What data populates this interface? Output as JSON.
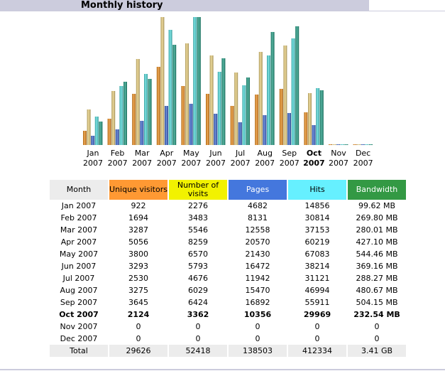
{
  "page": {
    "title": "Monthly history"
  },
  "colors": {
    "unique": "#ff9933",
    "visits": "#f2f200",
    "pages": "#4477dd",
    "hits": "#66f0ff",
    "bandwidth": "#339944"
  },
  "table": {
    "headers": [
      "Month",
      "Unique visitors",
      "Number of visits",
      "Pages",
      "Hits",
      "Bandwidth"
    ],
    "rows": [
      [
        "Jan 2007",
        "922",
        "2276",
        "4682",
        "14856",
        "99.62 MB"
      ],
      [
        "Feb 2007",
        "1694",
        "3483",
        "8131",
        "30814",
        "269.80 MB"
      ],
      [
        "Mar 2007",
        "3287",
        "5546",
        "12558",
        "37153",
        "280.01 MB"
      ],
      [
        "Apr 2007",
        "5056",
        "8259",
        "20570",
        "60219",
        "427.10 MB"
      ],
      [
        "May 2007",
        "3800",
        "6570",
        "21430",
        "67083",
        "544.46 MB"
      ],
      [
        "Jun 2007",
        "3293",
        "5793",
        "16472",
        "38214",
        "369.16 MB"
      ],
      [
        "Jul 2007",
        "2530",
        "4676",
        "11942",
        "31121",
        "288.27 MB"
      ],
      [
        "Aug 2007",
        "3275",
        "6029",
        "15470",
        "46994",
        "480.67 MB"
      ],
      [
        "Sep 2007",
        "3645",
        "6424",
        "16892",
        "55911",
        "504.15 MB"
      ],
      [
        "Oct 2007",
        "2124",
        "3362",
        "10356",
        "29969",
        "232.54 MB"
      ],
      [
        "Nov 2007",
        "0",
        "0",
        "0",
        "0",
        "0"
      ],
      [
        "Dec 2007",
        "0",
        "0",
        "0",
        "0",
        "0"
      ]
    ],
    "current_row": 9,
    "total": [
      "Total",
      "29626",
      "52418",
      "138503",
      "412334",
      "3.41 GB"
    ]
  },
  "chart_data": {
    "type": "bar",
    "title": "Monthly history",
    "categories": [
      [
        "Jan",
        "2007"
      ],
      [
        "Feb",
        "2007"
      ],
      [
        "Mar",
        "2007"
      ],
      [
        "Apr",
        "2007"
      ],
      [
        "May",
        "2007"
      ],
      [
        "Jun",
        "2007"
      ],
      [
        "Jul",
        "2007"
      ],
      [
        "Aug",
        "2007"
      ],
      [
        "Sep",
        "2007"
      ],
      [
        "Oct",
        "2007"
      ],
      [
        "Nov",
        "2007"
      ],
      [
        "Dec",
        "2007"
      ]
    ],
    "current_index": 9,
    "series": [
      {
        "name": "Unique visitors",
        "color": "#e88a1c",
        "group": "visitors",
        "values": [
          922,
          1694,
          3287,
          5056,
          3800,
          3293,
          2530,
          3275,
          3645,
          2124,
          0,
          0
        ]
      },
      {
        "name": "Number of visits",
        "color": "#e6cc7a",
        "group": "visitors",
        "values": [
          2276,
          3483,
          5546,
          8259,
          6570,
          5793,
          4676,
          6029,
          6424,
          3362,
          0,
          0
        ]
      },
      {
        "name": "Pages",
        "color": "#3d66cc",
        "group": "hits",
        "values": [
          4682,
          8131,
          12558,
          20570,
          21430,
          16472,
          11942,
          15470,
          16892,
          10356,
          0,
          0
        ]
      },
      {
        "name": "Hits",
        "color": "#4fd8d8",
        "group": "hits",
        "values": [
          14856,
          30814,
          37153,
          60219,
          67083,
          38214,
          31121,
          46994,
          55911,
          29969,
          0,
          0
        ]
      },
      {
        "name": "Bandwidth",
        "color": "#1f9980",
        "group": "bandwidth",
        "values": [
          99.62,
          269.8,
          280.01,
          427.1,
          544.46,
          369.16,
          288.27,
          480.67,
          504.15,
          232.54,
          0,
          0
        ]
      }
    ],
    "scale_max": {
      "visitors": 8259,
      "hits": 67083,
      "bandwidth": 544.46
    },
    "xlabel": "",
    "ylabel": ""
  }
}
